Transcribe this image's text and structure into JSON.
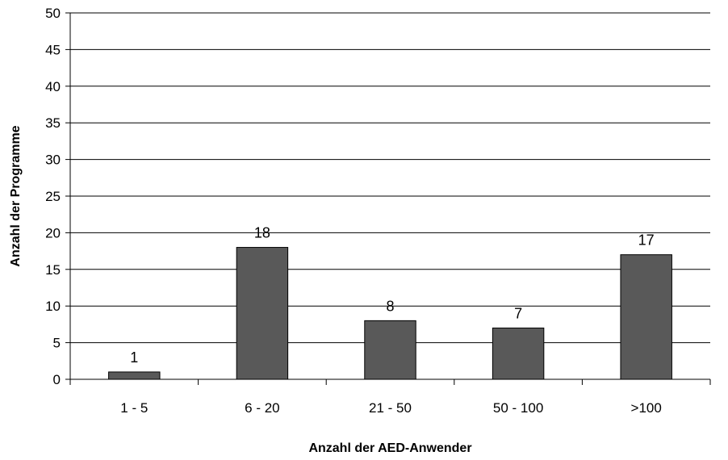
{
  "chart_data": {
    "type": "bar",
    "categories": [
      "1 - 5",
      "6 - 20",
      "21 - 50",
      "50 - 100",
      ">100"
    ],
    "values": [
      1,
      18,
      8,
      7,
      17
    ],
    "data_labels": [
      "1",
      "18",
      "8",
      "7",
      "17"
    ],
    "title": "",
    "xlabel": "Anzahl der AED-Anwender",
    "ylabel": "Anzahl der Programme",
    "ylim": [
      0,
      50
    ],
    "yticks": [
      0,
      5,
      10,
      15,
      20,
      25,
      30,
      35,
      40,
      45,
      50
    ],
    "grid": true,
    "legend": "none",
    "bar_color": "#595959",
    "bar_edge_color": "#000000"
  }
}
